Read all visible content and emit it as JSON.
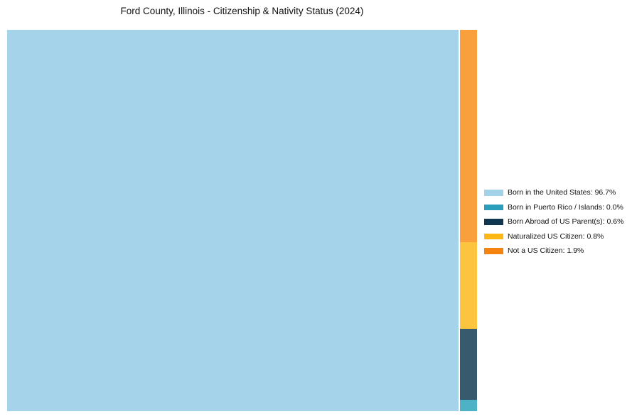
{
  "title": "Ford County, Illinois - Citizenship & Nativity Status (2024)",
  "chart_data": {
    "type": "treemap",
    "title": "Ford County, Illinois - Citizenship & Nativity Status (2024)",
    "unit": "percent",
    "categories": [
      "Born in the United States",
      "Born in Puerto Rico / Islands",
      "Born Abroad of US Parent(s)",
      "Naturalized US Citizen",
      "Not a US Citizen"
    ],
    "values": [
      96.7,
      0.0,
      0.6,
      0.8,
      1.9
    ],
    "legend_position": "right",
    "grid": false,
    "segments": [
      {
        "label": "Born in the United States",
        "value_pct": 96.7,
        "fill": "#a5d3ea",
        "legend_color": "#a2d2e8",
        "legend_text": "Born in the United States: 96.7%"
      },
      {
        "label": "Born in Puerto Rico / Islands",
        "value_pct": 0.0,
        "fill": "#4db2c6",
        "legend_color": "#2b9ebc",
        "legend_text": "Born in Puerto Rico / Islands: 0.0%"
      },
      {
        "label": "Born Abroad of US Parent(s)",
        "value_pct": 0.6,
        "fill": "#375a6e",
        "legend_color": "#10374f",
        "legend_text": "Born Abroad of US Parent(s): 0.6%"
      },
      {
        "label": "Naturalized US Citizen",
        "value_pct": 0.8,
        "fill": "#fdc53f",
        "legend_color": "#fdb813",
        "legend_text": "Naturalized US Citizen: 0.8%"
      },
      {
        "label": "Not a US Citizen",
        "value_pct": 1.9,
        "fill": "#f9a03c",
        "legend_color": "#f5830f",
        "legend_text": "Not a US Citizen: 1.9%"
      }
    ]
  }
}
